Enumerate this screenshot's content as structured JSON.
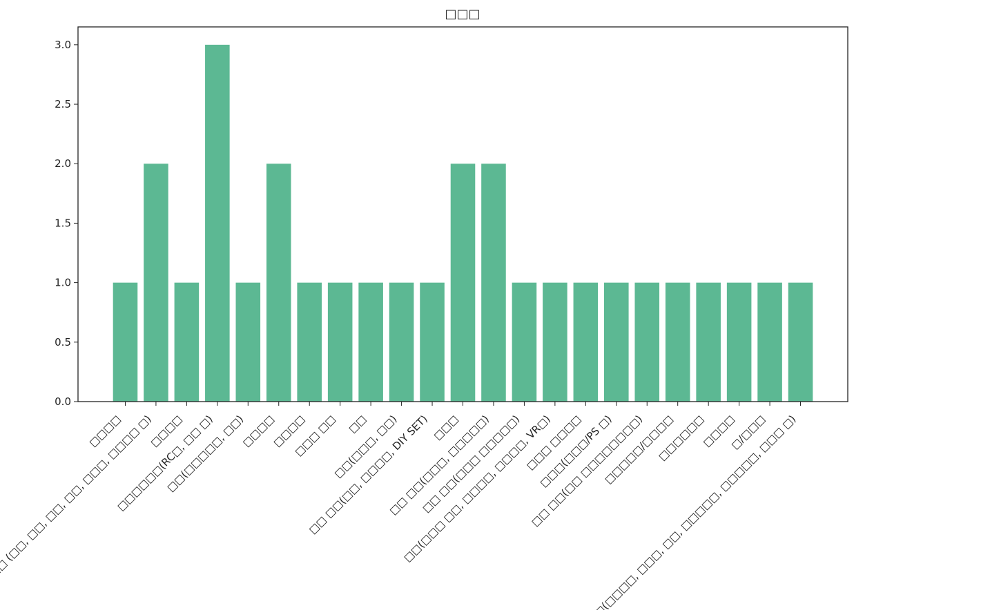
{
  "chart_data": {
    "type": "bar",
    "title": "□□□",
    "categories": [
      "□□□□",
      "□□□□□ (□□, □□, □□, □□, □□□, □□□□ □)",
      "□□□□",
      "□□□□□□(RC□, □□ □)",
      "□□(□□□□□, □□)",
      "□□□□",
      "□□□□",
      "□□□ □□",
      "□□",
      "□□(□□□, □□)",
      "□□ □□(□□, □□□□, DIY SET)",
      "□□□",
      "□□ □□(□□□, □□□□□)",
      "□□ □□(□□□ □□□□□)",
      "□□(□□□ □□, □□□□, □□□□, VR□)",
      "□□□ □□□□",
      "□□□(□□□/PS □)",
      "□□ □□(□□ □□□□□□□□)",
      "□□□□□/□□□□",
      "□□□□□□",
      "□□□□",
      "□/□□□",
      "□(□□□□, □□□, □□, □□□□□, □□□□□, □□□ □)"
    ],
    "values": [
      1,
      2,
      1,
      3,
      1,
      2,
      1,
      1,
      1,
      1,
      1,
      2,
      2,
      1,
      1,
      1,
      1,
      1,
      1,
      1,
      1,
      1,
      1
    ],
    "color": "#5cb893",
    "ylim": [
      0,
      3.15
    ],
    "yticks": [
      {
        "value": 0,
        "label": "0.0"
      },
      {
        "value": 0.5,
        "label": "0.5"
      },
      {
        "value": 1,
        "label": "1.0"
      },
      {
        "value": 1.5,
        "label": "1.5"
      },
      {
        "value": 2,
        "label": "2.0"
      },
      {
        "value": 2.5,
        "label": "2.5"
      },
      {
        "value": 3,
        "label": "3.0"
      }
    ],
    "grid": false
  }
}
